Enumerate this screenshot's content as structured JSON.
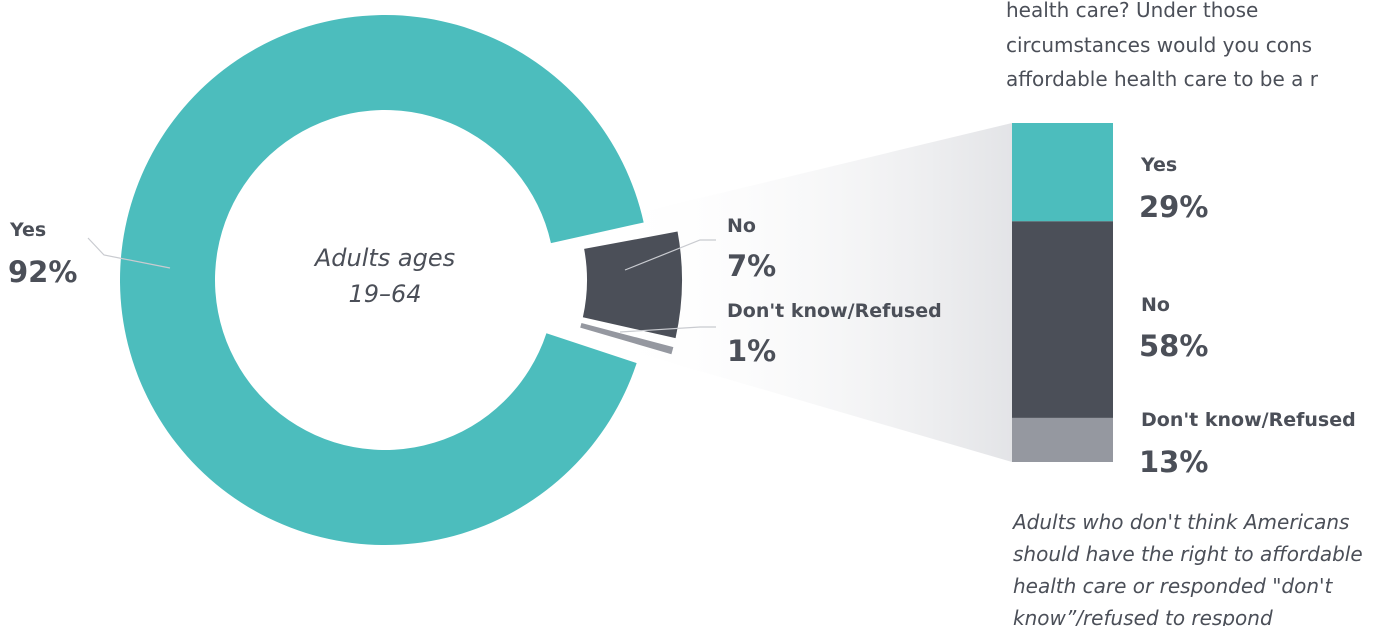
{
  "question_fragment": [
    "health care? Under those",
    "circumstances would you cons",
    "affordable health care to be a r"
  ],
  "center_label": [
    "Adults ages",
    "19–64"
  ],
  "footnote": [
    "Adults who don't think Americans",
    "should have the right to affordable",
    "health care or responded \"don't",
    "know”/refused to respond"
  ],
  "colors": {
    "yes": "#4cbdbd",
    "no": "#4b4f58",
    "dk": "#9598a0",
    "text": "#4b4f58",
    "wedge": "#e6e7e9"
  },
  "chart_data": [
    {
      "type": "pie",
      "variant": "donut",
      "title": "",
      "slices": [
        {
          "label": "Yes",
          "value": 92,
          "display": "92%"
        },
        {
          "label": "No",
          "value": 7,
          "display": "7%"
        },
        {
          "label": "Don't know/Refused",
          "value": 1,
          "display": "1%"
        }
      ]
    },
    {
      "type": "bar",
      "variant": "100% stacked column",
      "title": "",
      "segments": [
        {
          "label": "Yes",
          "value": 29,
          "display": "29%"
        },
        {
          "label": "No",
          "value": 58,
          "display": "58%"
        },
        {
          "label": "Don't know/Refused",
          "value": 13,
          "display": "13%"
        }
      ]
    }
  ]
}
